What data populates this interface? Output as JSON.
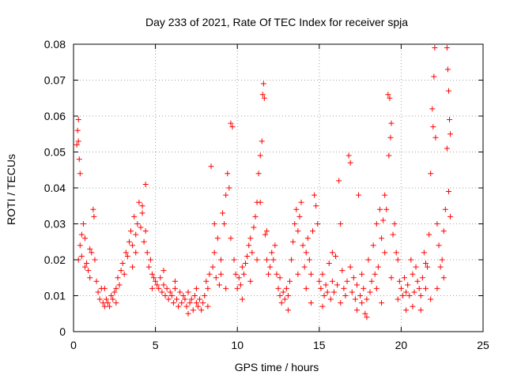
{
  "chart_data": {
    "type": "scatter",
    "title": "Day 233 of 2021, Rate Of TEC Index for receiver spja",
    "xlabel": "GPS time / hours",
    "ylabel": "ROTI / TECUs",
    "xlim": [
      0,
      25
    ],
    "ylim": [
      0,
      0.08
    ],
    "xticks": [
      0,
      5,
      10,
      15,
      20,
      25
    ],
    "yticks": [
      0,
      0.01,
      0.02,
      0.03,
      0.04,
      0.05,
      0.06,
      0.07,
      0.08
    ],
    "xtick_labels": [
      "0",
      "5",
      "10",
      "15",
      "20",
      "25"
    ],
    "ytick_labels": [
      "0",
      "0.01",
      "0.02",
      "0.03",
      "0.04",
      "0.05",
      "0.06",
      "0.07",
      "0.08"
    ],
    "grid": true,
    "marker": "+",
    "marker_color": "#ff0000",
    "series": [
      {
        "name": "ROTI",
        "points": [
          [
            0.2,
            0.052
          ],
          [
            0.25,
            0.056
          ],
          [
            0.3,
            0.059
          ],
          [
            0.3,
            0.053
          ],
          [
            0.35,
            0.048
          ],
          [
            0.4,
            0.044
          ],
          [
            0.3,
            0.02
          ],
          [
            0.4,
            0.024
          ],
          [
            0.5,
            0.027
          ],
          [
            0.6,
            0.03
          ],
          [
            0.7,
            0.026
          ],
          [
            0.8,
            0.019
          ],
          [
            0.9,
            0.017
          ],
          [
            1.0,
            0.015
          ],
          [
            1.1,
            0.022
          ],
          [
            1.2,
            0.034
          ],
          [
            1.25,
            0.032
          ],
          [
            1.3,
            0.02
          ],
          [
            1.4,
            0.014
          ],
          [
            1.5,
            0.011
          ],
          [
            1.6,
            0.009
          ],
          [
            1.7,
            0.012
          ],
          [
            1.8,
            0.008
          ],
          [
            1.9,
            0.007
          ],
          [
            2.0,
            0.009
          ],
          [
            2.1,
            0.008
          ],
          [
            2.2,
            0.007
          ],
          [
            2.3,
            0.01
          ],
          [
            2.4,
            0.009
          ],
          [
            2.5,
            0.011
          ],
          [
            2.6,
            0.012
          ],
          [
            2.7,
            0.015
          ],
          [
            2.8,
            0.013
          ],
          [
            2.9,
            0.017
          ],
          [
            3.0,
            0.019
          ],
          [
            3.1,
            0.016
          ],
          [
            3.2,
            0.022
          ],
          [
            3.3,
            0.021
          ],
          [
            3.4,
            0.025
          ],
          [
            3.5,
            0.028
          ],
          [
            3.6,
            0.024
          ],
          [
            3.7,
            0.032
          ],
          [
            3.8,
            0.027
          ],
          [
            3.9,
            0.03
          ],
          [
            4.0,
            0.036
          ],
          [
            4.1,
            0.029
          ],
          [
            4.2,
            0.033
          ],
          [
            4.3,
            0.025
          ],
          [
            4.4,
            0.041
          ],
          [
            4.5,
            0.022
          ],
          [
            4.6,
            0.018
          ],
          [
            4.7,
            0.02
          ],
          [
            4.8,
            0.016
          ],
          [
            4.9,
            0.015
          ],
          [
            5.0,
            0.014
          ],
          [
            5.1,
            0.013
          ],
          [
            5.2,
            0.012
          ],
          [
            5.3,
            0.015
          ],
          [
            5.4,
            0.011
          ],
          [
            5.5,
            0.013
          ],
          [
            5.6,
            0.01
          ],
          [
            5.7,
            0.012
          ],
          [
            5.8,
            0.009
          ],
          [
            5.9,
            0.011
          ],
          [
            6.0,
            0.01
          ],
          [
            6.1,
            0.008
          ],
          [
            6.2,
            0.012
          ],
          [
            6.3,
            0.009
          ],
          [
            6.4,
            0.007
          ],
          [
            6.5,
            0.011
          ],
          [
            6.6,
            0.008
          ],
          [
            6.7,
            0.01
          ],
          [
            6.8,
            0.009
          ],
          [
            6.9,
            0.007
          ],
          [
            7.0,
            0.011
          ],
          [
            7.1,
            0.008
          ],
          [
            7.2,
            0.009
          ],
          [
            7.3,
            0.006
          ],
          [
            7.4,
            0.01
          ],
          [
            7.5,
            0.008
          ],
          [
            7.6,
            0.007
          ],
          [
            7.7,
            0.009
          ],
          [
            7.8,
            0.006
          ],
          [
            7.9,
            0.008
          ],
          [
            8.0,
            0.01
          ],
          [
            8.1,
            0.014
          ],
          [
            8.2,
            0.012
          ],
          [
            8.3,
            0.016
          ],
          [
            8.4,
            0.046
          ],
          [
            8.5,
            0.018
          ],
          [
            8.6,
            0.022
          ],
          [
            8.7,
            0.015
          ],
          [
            8.8,
            0.026
          ],
          [
            8.9,
            0.013
          ],
          [
            9.0,
            0.02
          ],
          [
            9.1,
            0.033
          ],
          [
            9.2,
            0.03
          ],
          [
            9.3,
            0.038
          ],
          [
            9.4,
            0.044
          ],
          [
            9.5,
            0.04
          ],
          [
            9.6,
            0.058
          ],
          [
            9.7,
            0.057
          ],
          [
            9.8,
            0.02
          ],
          [
            9.9,
            0.016
          ],
          [
            10.0,
            0.012
          ],
          [
            10.1,
            0.015
          ],
          [
            10.2,
            0.013
          ],
          [
            10.3,
            0.018
          ],
          [
            10.4,
            0.016
          ],
          [
            10.5,
            0.019
          ],
          [
            10.6,
            0.021
          ],
          [
            10.7,
            0.024
          ],
          [
            10.8,
            0.026
          ],
          [
            10.9,
            0.022
          ],
          [
            11.0,
            0.029
          ],
          [
            11.1,
            0.032
          ],
          [
            11.2,
            0.036
          ],
          [
            11.3,
            0.044
          ],
          [
            11.4,
            0.049
          ],
          [
            11.5,
            0.053
          ],
          [
            11.55,
            0.066
          ],
          [
            11.6,
            0.069
          ],
          [
            11.65,
            0.065
          ],
          [
            11.7,
            0.027
          ],
          [
            11.8,
            0.02
          ],
          [
            11.9,
            0.016
          ],
          [
            12.0,
            0.018
          ],
          [
            12.1,
            0.022
          ],
          [
            12.2,
            0.02
          ],
          [
            12.3,
            0.024
          ],
          [
            12.4,
            0.016
          ],
          [
            12.5,
            0.012
          ],
          [
            12.6,
            0.01
          ],
          [
            12.7,
            0.008
          ],
          [
            12.8,
            0.011
          ],
          [
            12.9,
            0.009
          ],
          [
            13.0,
            0.012
          ],
          [
            13.1,
            0.01
          ],
          [
            13.2,
            0.014
          ],
          [
            13.3,
            0.02
          ],
          [
            13.4,
            0.025
          ],
          [
            13.5,
            0.03
          ],
          [
            13.6,
            0.034
          ],
          [
            13.7,
            0.028
          ],
          [
            13.8,
            0.032
          ],
          [
            13.9,
            0.036
          ],
          [
            14.0,
            0.024
          ],
          [
            14.1,
            0.018
          ],
          [
            14.2,
            0.022
          ],
          [
            14.3,
            0.026
          ],
          [
            14.4,
            0.02
          ],
          [
            14.5,
            0.016
          ],
          [
            14.6,
            0.028
          ],
          [
            14.7,
            0.038
          ],
          [
            14.8,
            0.035
          ],
          [
            14.9,
            0.03
          ],
          [
            15.0,
            0.014
          ],
          [
            15.1,
            0.012
          ],
          [
            15.2,
            0.016
          ],
          [
            15.3,
            0.01
          ],
          [
            15.4,
            0.013
          ],
          [
            15.5,
            0.011
          ],
          [
            15.6,
            0.019
          ],
          [
            15.7,
            0.009
          ],
          [
            15.8,
            0.014
          ],
          [
            15.9,
            0.011
          ],
          [
            16.0,
            0.021
          ],
          [
            16.1,
            0.013
          ],
          [
            16.2,
            0.042
          ],
          [
            16.3,
            0.03
          ],
          [
            16.4,
            0.017
          ],
          [
            16.5,
            0.012
          ],
          [
            16.6,
            0.01
          ],
          [
            16.7,
            0.014
          ],
          [
            16.8,
            0.049
          ],
          [
            16.9,
            0.047
          ],
          [
            17.0,
            0.011
          ],
          [
            17.1,
            0.015
          ],
          [
            17.2,
            0.009
          ],
          [
            17.3,
            0.013
          ],
          [
            17.4,
            0.038
          ],
          [
            17.5,
            0.01
          ],
          [
            17.6,
            0.008
          ],
          [
            17.7,
            0.012
          ],
          [
            17.8,
            0.005
          ],
          [
            17.9,
            0.009
          ],
          [
            18.0,
            0.02
          ],
          [
            18.1,
            0.011
          ],
          [
            18.2,
            0.014
          ],
          [
            18.3,
            0.024
          ],
          [
            18.4,
            0.016
          ],
          [
            18.5,
            0.03
          ],
          [
            18.6,
            0.018
          ],
          [
            18.7,
            0.034
          ],
          [
            18.8,
            0.026
          ],
          [
            18.9,
            0.031
          ],
          [
            19.0,
            0.038
          ],
          [
            19.1,
            0.034
          ],
          [
            19.2,
            0.066
          ],
          [
            19.3,
            0.065
          ],
          [
            19.25,
            0.049
          ],
          [
            19.35,
            0.054
          ],
          [
            19.4,
            0.058
          ],
          [
            19.5,
            0.027
          ],
          [
            19.6,
            0.03
          ],
          [
            19.7,
            0.022
          ],
          [
            19.8,
            0.02
          ],
          [
            19.9,
            0.014
          ],
          [
            20.0,
            0.012
          ],
          [
            20.1,
            0.01
          ],
          [
            20.2,
            0.015
          ],
          [
            20.3,
            0.011
          ],
          [
            20.4,
            0.013
          ],
          [
            20.5,
            0.01
          ],
          [
            20.6,
            0.02
          ],
          [
            20.7,
            0.016
          ],
          [
            20.8,
            0.011
          ],
          [
            20.9,
            0.018
          ],
          [
            21.0,
            0.014
          ],
          [
            21.1,
            0.012
          ],
          [
            21.2,
            0.01
          ],
          [
            21.3,
            0.015
          ],
          [
            21.4,
            0.022
          ],
          [
            21.5,
            0.012
          ],
          [
            21.6,
            0.018
          ],
          [
            21.7,
            0.027
          ],
          [
            21.8,
            0.044
          ],
          [
            21.9,
            0.062
          ],
          [
            21.95,
            0.057
          ],
          [
            22.0,
            0.071
          ],
          [
            22.05,
            0.079
          ],
          [
            22.1,
            0.054
          ],
          [
            22.2,
            0.03
          ],
          [
            22.3,
            0.024
          ],
          [
            22.4,
            0.018
          ],
          [
            22.5,
            0.02
          ],
          [
            22.6,
            0.028
          ],
          [
            22.7,
            0.034
          ],
          [
            22.8,
            0.079
          ],
          [
            22.85,
            0.073
          ],
          [
            22.9,
            0.067
          ],
          [
            22.95,
            0.059
          ],
          [
            23.0,
            0.055
          ],
          [
            22.8,
            0.051
          ],
          [
            22.9,
            0.039
          ],
          [
            23.0,
            0.032
          ],
          [
            0.5,
            0.021
          ],
          [
            0.7,
            0.018
          ],
          [
            1.0,
            0.023
          ],
          [
            1.9,
            0.012
          ],
          [
            2.6,
            0.008
          ],
          [
            3.6,
            0.018
          ],
          [
            3.8,
            0.022
          ],
          [
            4.2,
            0.035
          ],
          [
            4.4,
            0.028
          ],
          [
            4.8,
            0.012
          ],
          [
            5.5,
            0.017
          ],
          [
            6.2,
            0.014
          ],
          [
            7.0,
            0.005
          ],
          [
            7.5,
            0.012
          ],
          [
            8.2,
            0.007
          ],
          [
            8.6,
            0.03
          ],
          [
            9.0,
            0.016
          ],
          [
            9.3,
            0.012
          ],
          [
            9.6,
            0.026
          ],
          [
            10.3,
            0.009
          ],
          [
            10.8,
            0.014
          ],
          [
            11.2,
            0.02
          ],
          [
            11.4,
            0.036
          ],
          [
            11.8,
            0.028
          ],
          [
            12.6,
            0.015
          ],
          [
            13.1,
            0.006
          ],
          [
            13.7,
            0.016
          ],
          [
            14.2,
            0.012
          ],
          [
            14.5,
            0.008
          ],
          [
            15.2,
            0.007
          ],
          [
            15.8,
            0.022
          ],
          [
            16.3,
            0.008
          ],
          [
            16.9,
            0.018
          ],
          [
            17.3,
            0.006
          ],
          [
            17.6,
            0.016
          ],
          [
            17.9,
            0.004
          ],
          [
            18.5,
            0.012
          ],
          [
            18.8,
            0.008
          ],
          [
            19.0,
            0.022
          ],
          [
            19.4,
            0.015
          ],
          [
            19.8,
            0.009
          ],
          [
            20.3,
            0.006
          ],
          [
            20.7,
            0.007
          ],
          [
            21.2,
            0.006
          ],
          [
            21.5,
            0.019
          ],
          [
            21.8,
            0.009
          ],
          [
            22.2,
            0.012
          ],
          [
            22.6,
            0.015
          ]
        ]
      }
    ]
  }
}
